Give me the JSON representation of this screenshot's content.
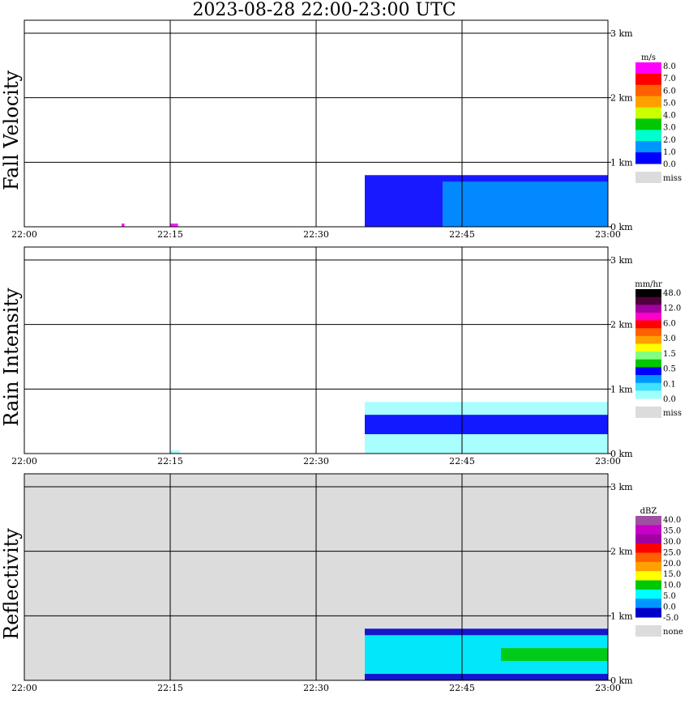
{
  "title": "2023-08-28   22:00-23:00 UTC",
  "colors": {
    "grid": "#000000",
    "missing": "#dcdcdc",
    "background": "#ffffff"
  },
  "chart_data": [
    {
      "type": "heatmap",
      "ylabel": "Fall Velocity",
      "xlabel": "",
      "x_ticks": [
        "22:00",
        "22:15",
        "22:30",
        "22:45",
        "23:00"
      ],
      "y_ticks": [
        "0 km",
        "1 km",
        "2 km",
        "3 km"
      ],
      "xlim_minutes": [
        0,
        60
      ],
      "ylim_km": [
        0,
        3.2
      ],
      "legend_title": "m/s",
      "legend_labels": [
        "8.0",
        "7.0",
        "6.0",
        "5.0",
        "4.0",
        "3.0",
        "2.0",
        "1.0",
        "0.0"
      ],
      "legend_missing_label": "miss",
      "legend_colors": [
        "#ff00ff",
        "#ff0000",
        "#ff6000",
        "#ffa000",
        "#ccff00",
        "#00c800",
        "#00ffcc",
        "#0096ff",
        "#0000ff"
      ],
      "background": "white",
      "cells": [
        {
          "t0": 35.0,
          "t1": 60.0,
          "h0": 0.0,
          "h1": 0.8,
          "value": "0-1 m/s",
          "color": "#0000ff"
        },
        {
          "t0": 43.0,
          "t1": 60.0,
          "h0": 0.0,
          "h1": 0.7,
          "value": "1-2 m/s",
          "color": "#0096ff"
        },
        {
          "t0": 10.0,
          "t1": 10.3,
          "h0": 0.0,
          "h1": 0.05,
          "value": "8 m/s",
          "color": "#ff00ff"
        },
        {
          "t0": 15.0,
          "t1": 15.8,
          "h0": 0.0,
          "h1": 0.05,
          "value": "8 m/s",
          "color": "#ff00ff"
        }
      ]
    },
    {
      "type": "heatmap",
      "ylabel": "Rain Intensity",
      "xlabel": "",
      "x_ticks": [
        "22:00",
        "22:15",
        "22:30",
        "22:45",
        "23:00"
      ],
      "y_ticks": [
        "0 km",
        "1 km",
        "2 km",
        "3 km"
      ],
      "xlim_minutes": [
        0,
        60
      ],
      "ylim_km": [
        0,
        3.2
      ],
      "legend_title": "mm/hr",
      "legend_labels": [
        "48.0",
        "12.0",
        "6.0",
        "3.0",
        "1.5",
        "0.5",
        "0.1",
        "0.0"
      ],
      "legend_missing_label": "miss",
      "legend_colors": [
        "#000000",
        "#50003c",
        "#a000a0",
        "#ff00c8",
        "#ff0000",
        "#ff6000",
        "#ffa000",
        "#ffff00",
        "#80ff80",
        "#00c800",
        "#0000ff",
        "#0096ff",
        "#40e0ff",
        "#a0ffff"
      ],
      "background": "white",
      "cells": [
        {
          "t0": 35.0,
          "t1": 60.0,
          "h0": 0.0,
          "h1": 0.8,
          "value": "0.0-0.1 mm/hr",
          "color": "#a0ffff"
        },
        {
          "t0": 35.0,
          "t1": 60.0,
          "h0": 0.3,
          "h1": 0.6,
          "value": "0.5-1.5 mm/hr",
          "color": "#0000ff"
        },
        {
          "t0": 15.0,
          "t1": 16.0,
          "h0": 0.0,
          "h1": 0.05,
          "value": "0.0-0.1 mm/hr",
          "color": "#a0ffff"
        }
      ]
    },
    {
      "type": "heatmap",
      "ylabel": "Reflectivity",
      "xlabel": "",
      "x_ticks": [
        "22:00",
        "22:15",
        "22:30",
        "22:45",
        "23:00"
      ],
      "y_ticks": [
        "0 km",
        "1 km",
        "2 km",
        "3 km"
      ],
      "xlim_minutes": [
        0,
        60
      ],
      "ylim_km": [
        0,
        3.2
      ],
      "legend_title": "dBZ",
      "legend_labels": [
        "40.0",
        "35.0",
        "30.0",
        "25.0",
        "20.0",
        "15.0",
        "10.0",
        "5.0",
        "0.0",
        "-5.0"
      ],
      "legend_missing_label": "none",
      "legend_colors": [
        "#a050a0",
        "#c800c8",
        "#a000a0",
        "#ff0000",
        "#ff6000",
        "#ffa000",
        "#ffff00",
        "#00c800",
        "#00ffff",
        "#0096ff",
        "#0000c8"
      ],
      "background": "#dcdcdc",
      "cells": [
        {
          "t0": 35.0,
          "t1": 60.0,
          "h0": 0.0,
          "h1": 0.8,
          "value": "-5 to 0 dBZ",
          "color": "#0000c8"
        },
        {
          "t0": 35.0,
          "t1": 60.0,
          "h0": 0.1,
          "h1": 0.7,
          "value": "5-10 dBZ",
          "color": "#00ffff"
        },
        {
          "t0": 49.0,
          "t1": 60.0,
          "h0": 0.3,
          "h1": 0.5,
          "value": "10-15 dBZ",
          "color": "#00c800"
        }
      ]
    }
  ]
}
